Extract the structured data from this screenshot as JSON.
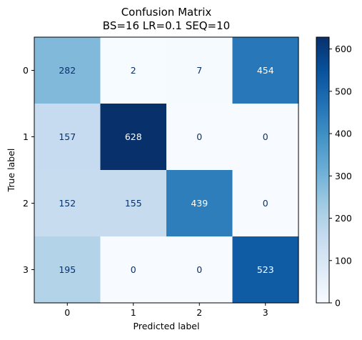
{
  "chart_data": {
    "type": "heatmap",
    "title": [
      "Confusion Matrix",
      "BS=16 LR=0.1 SEQ=10"
    ],
    "xlabel": "Predicted label",
    "ylabel": "True label",
    "x_categories": [
      "0",
      "1",
      "2",
      "3"
    ],
    "y_categories": [
      "0",
      "1",
      "2",
      "3"
    ],
    "values": [
      [
        282,
        2,
        7,
        454
      ],
      [
        157,
        628,
        0,
        0
      ],
      [
        152,
        155,
        439,
        0
      ],
      [
        195,
        0,
        0,
        523
      ]
    ],
    "colorbar": {
      "colormap": "Blues",
      "range": [
        0,
        628
      ],
      "ticks": [
        0,
        100,
        200,
        300,
        400,
        500,
        600
      ]
    },
    "colors": {
      "low": "#f7fbff",
      "high": "#08306b",
      "light_text": "#ffffff",
      "dark_text": "#08306b"
    }
  }
}
